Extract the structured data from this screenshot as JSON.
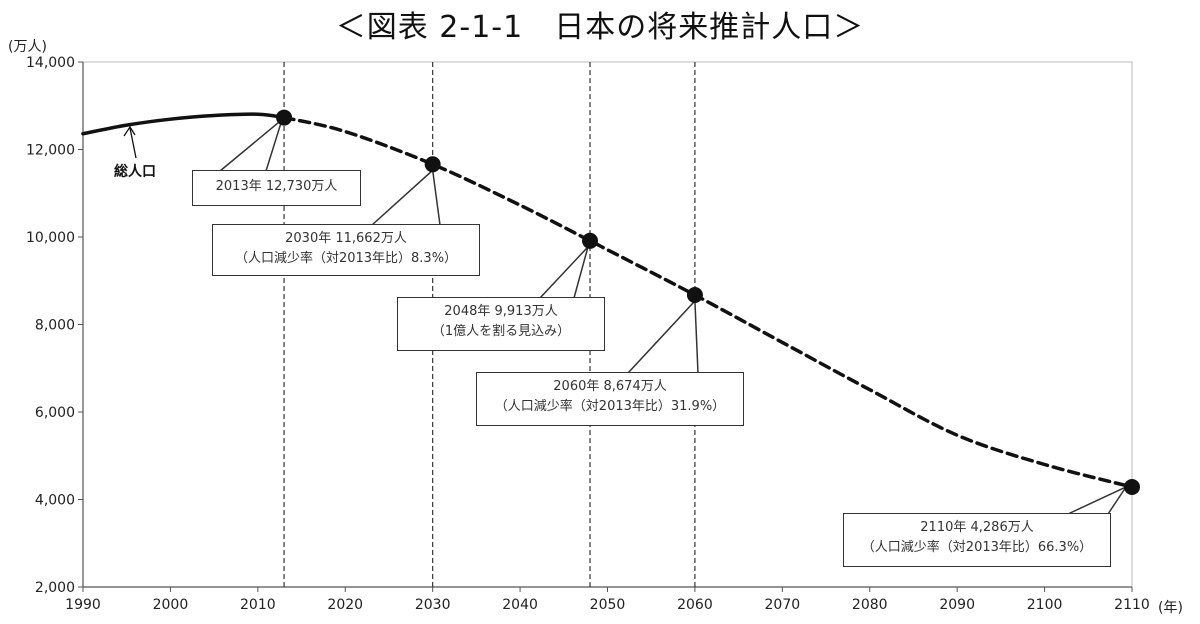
{
  "title": "＜図表 2-1-1　日本の将来推計人口＞",
  "chart_data": {
    "type": "line",
    "y_unit_label": "(万人)",
    "x_unit_label": "(年)",
    "xlim": [
      1990,
      2110
    ],
    "ylim": [
      2000,
      14000
    ],
    "x_ticks": [
      1990,
      2000,
      2010,
      2020,
      2030,
      2040,
      2050,
      2060,
      2070,
      2080,
      2090,
      2100,
      2110
    ],
    "y_ticks": [
      2000,
      4000,
      6000,
      8000,
      10000,
      12000,
      14000
    ],
    "y_tick_labels": [
      "2,000",
      "4,000",
      "6,000",
      "8,000",
      "10,000",
      "12,000",
      "14,000"
    ],
    "grid": false,
    "series": [
      {
        "name": "総人口",
        "style": "solid",
        "x": [
          1990,
          1995,
          2000,
          2005,
          2010,
          2013
        ],
        "y": [
          12361,
          12557,
          12693,
          12777,
          12806,
          12730
        ]
      },
      {
        "name": "",
        "style": "dashed",
        "x": [
          2013,
          2020,
          2030,
          2040,
          2048,
          2050,
          2060,
          2070,
          2080,
          2090,
          2100,
          2110
        ],
        "y": [
          12730,
          12410,
          11662,
          10728,
          9913,
          9708,
          8674,
          7590,
          6510,
          5470,
          4800,
          4286
        ]
      }
    ],
    "markers": [
      {
        "x": 2013,
        "y": 12730
      },
      {
        "x": 2030,
        "y": 11662
      },
      {
        "x": 2048,
        "y": 9913
      },
      {
        "x": 2060,
        "y": 8674
      },
      {
        "x": 2110,
        "y": 4286
      }
    ],
    "vlines": [
      2013,
      2030,
      2048,
      2060
    ],
    "series_label": "総人口",
    "annotations": [
      {
        "lines": [
          "2013年  12,730万人"
        ]
      },
      {
        "lines": [
          "2030年  11,662万人",
          "（人口減少率（対2013年比）8.3%）"
        ]
      },
      {
        "lines": [
          "2048年  9,913万人",
          "（1億人を割る見込み）"
        ]
      },
      {
        "lines": [
          "2060年  8,674万人",
          "（人口減少率（対2013年比）31.9%）"
        ]
      },
      {
        "lines": [
          "2110年  4,286万人",
          "（人口減少率（対2013年比）66.3%）"
        ]
      }
    ]
  }
}
